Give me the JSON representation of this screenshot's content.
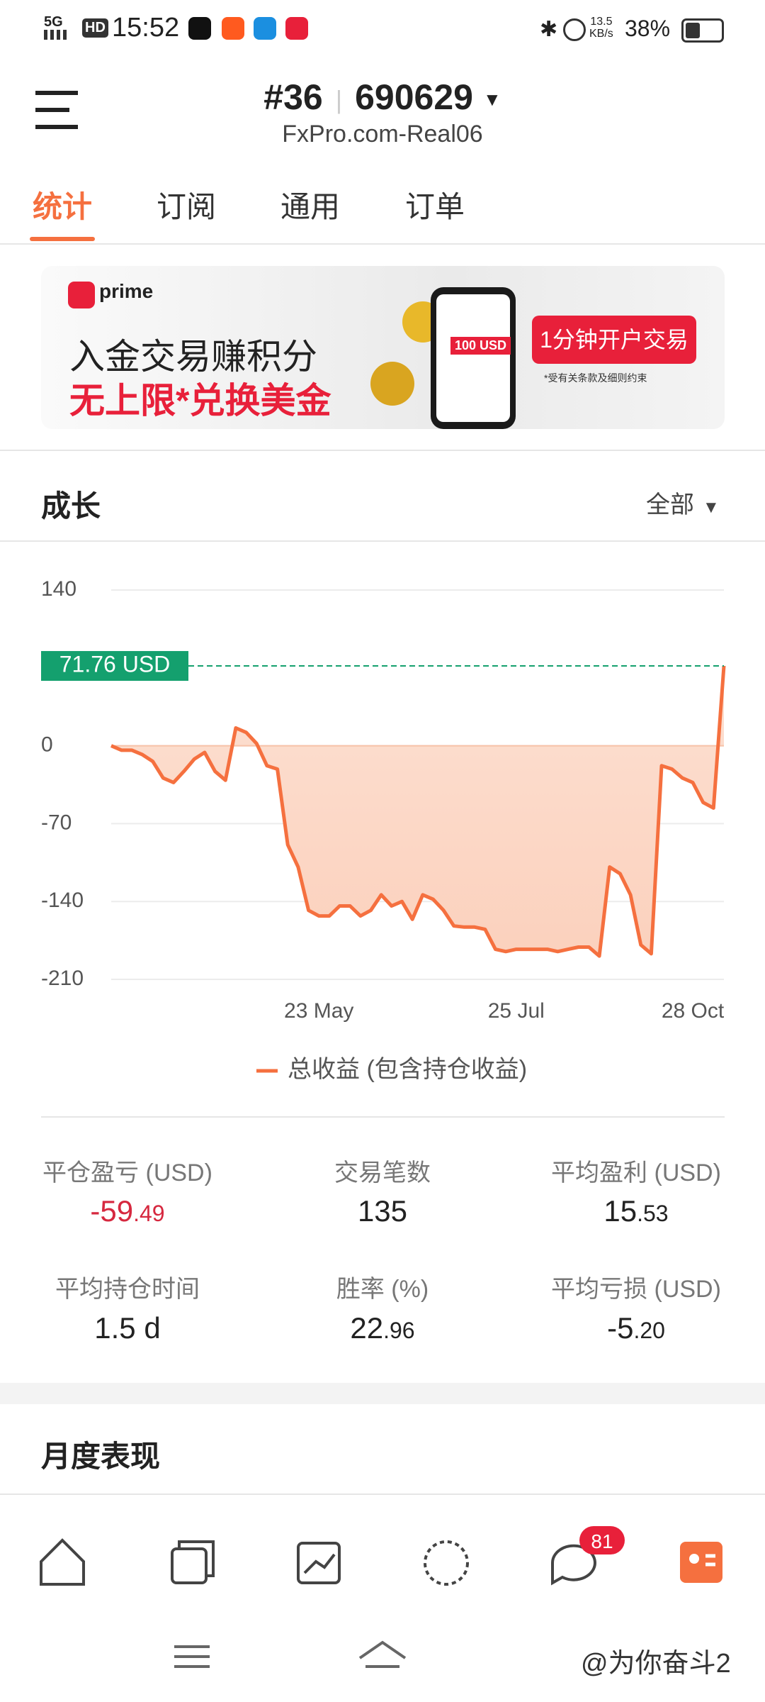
{
  "status": {
    "network": "5G",
    "hd": "HD",
    "time": "15:52",
    "speed": "13.5",
    "speed_unit": "KB/s",
    "battery": "38%"
  },
  "header": {
    "account": "#36",
    "number": "690629",
    "server": "FxPro.com-Real06"
  },
  "tabs": [
    "统计",
    "订阅",
    "通用",
    "订单"
  ],
  "banner": {
    "brand": "prime",
    "line1": "入金交易赚积分",
    "line2": "无上限*兑换美金",
    "card": "100 USD",
    "button": "1分钟开户交易",
    "note": "*受有关条款及细则约束"
  },
  "section": {
    "title": "成长",
    "filter": "全部"
  },
  "chart_data": {
    "type": "line",
    "categories": [
      null,
      null,
      null,
      null,
      null,
      null,
      null,
      null,
      null,
      null,
      null,
      null,
      null,
      null,
      null,
      null,
      null,
      null,
      null,
      null,
      "23 May",
      null,
      null,
      null,
      null,
      null,
      null,
      null,
      null,
      null,
      null,
      null,
      null,
      null,
      null,
      null,
      null,
      null,
      null,
      "25 Jul",
      null,
      null,
      null,
      null,
      null,
      null,
      null,
      null,
      null,
      null,
      null,
      null,
      null,
      null,
      null,
      null,
      "28 Oct",
      null,
      null,
      null
    ],
    "series": [
      {
        "name": "总收益 (包含持仓收益)",
        "color": "#f5703f",
        "values": [
          0,
          -4,
          -4,
          -8,
          -14,
          -29,
          -33,
          -23,
          -12,
          -6,
          -23,
          -31,
          16,
          12,
          2,
          -18,
          -21,
          -89,
          -109,
          -148,
          -153,
          -153,
          -144,
          -144,
          -153,
          -148,
          -134,
          -144,
          -140,
          -156,
          -134,
          -138,
          -148,
          -162,
          -163,
          -163,
          -165,
          -183,
          -185,
          -183,
          -183,
          -183,
          -183,
          -185,
          -183,
          -181,
          -181,
          -189,
          -109,
          -115,
          -134,
          -179,
          -187,
          -18,
          -21,
          -29,
          -33,
          -51,
          -56,
          71.76
        ]
      }
    ],
    "current_label": "71.76 USD",
    "current_color": "#14a06e",
    "ylim": [
      -210,
      140
    ],
    "yticks": [
      -210,
      -140,
      -70,
      0,
      140
    ],
    "grid": true
  },
  "stats": [
    {
      "label": "平仓盈亏 (USD)",
      "value": "-59.49",
      "color": "#d6283f"
    },
    {
      "label": "交易笔数",
      "value": "135",
      "color": "#222222"
    },
    {
      "label": "平均盈利 (USD)",
      "value": "15.53",
      "color": "#222222"
    },
    {
      "label": "平均持仓时间",
      "value": "1.5 d",
      "color": "#222222"
    },
    {
      "label": "胜率 (%)",
      "value": "22.96",
      "color": "#222222"
    },
    {
      "label": "平均亏损 (USD)",
      "value": "-5.20",
      "color": "#222222"
    }
  ],
  "monthly_title": "月度表现",
  "nav": {
    "badge": "81"
  },
  "watermark": "@为你奋斗2"
}
